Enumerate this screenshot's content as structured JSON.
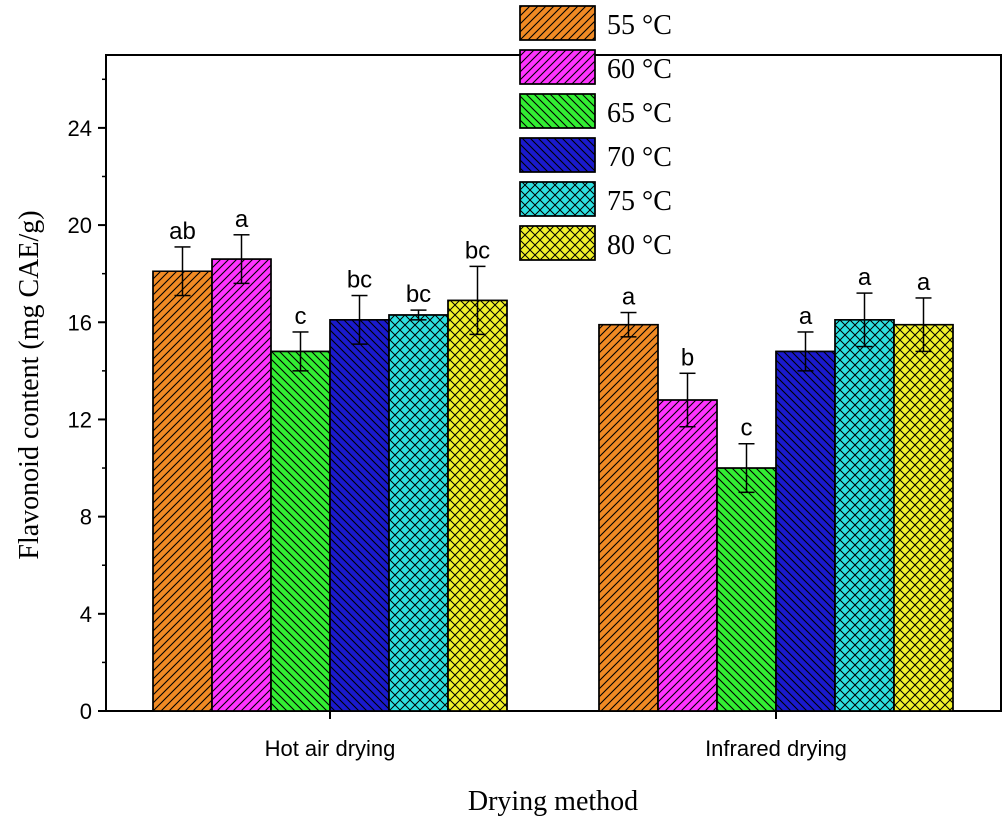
{
  "chart_data": {
    "type": "bar",
    "title": "",
    "xlabel": "Drying method",
    "ylabel": "Flavonoid content (mg CAE/g)",
    "ylim": [
      0,
      27
    ],
    "yticks": [
      0,
      4,
      8,
      12,
      16,
      20,
      24
    ],
    "categories": [
      "Hot air drying",
      "Infrared drying"
    ],
    "series": [
      {
        "name": "55 °C",
        "color": "#f08a24",
        "pattern": "diag-right",
        "values": [
          18.1,
          15.9
        ],
        "errors": [
          1.0,
          0.5
        ],
        "labels": [
          "ab",
          "a"
        ]
      },
      {
        "name": "60 °C",
        "color": "#ff33ff",
        "pattern": "diag-right",
        "values": [
          18.6,
          12.8
        ],
        "errors": [
          1.0,
          1.1
        ],
        "labels": [
          "a",
          "b"
        ]
      },
      {
        "name": "65 °C",
        "color": "#33ee33",
        "pattern": "diag-left",
        "values": [
          14.8,
          10.0
        ],
        "errors": [
          0.8,
          1.0
        ],
        "labels": [
          "c",
          "c"
        ]
      },
      {
        "name": "70 °C",
        "color": "#1a1acc",
        "pattern": "diag-left",
        "values": [
          16.1,
          14.8
        ],
        "errors": [
          1.0,
          0.8
        ],
        "labels": [
          "bc",
          "a"
        ]
      },
      {
        "name": "75 °C",
        "color": "#2ee0e0",
        "pattern": "cross",
        "values": [
          16.3,
          16.1
        ],
        "errors": [
          0.2,
          1.1
        ],
        "labels": [
          "bc",
          "a"
        ]
      },
      {
        "name": "80 °C",
        "color": "#f0f02a",
        "pattern": "cross",
        "values": [
          16.9,
          15.9
        ],
        "errors": [
          1.4,
          1.1
        ],
        "labels": [
          "bc",
          "a"
        ]
      }
    ],
    "legend_position": "top-center"
  }
}
